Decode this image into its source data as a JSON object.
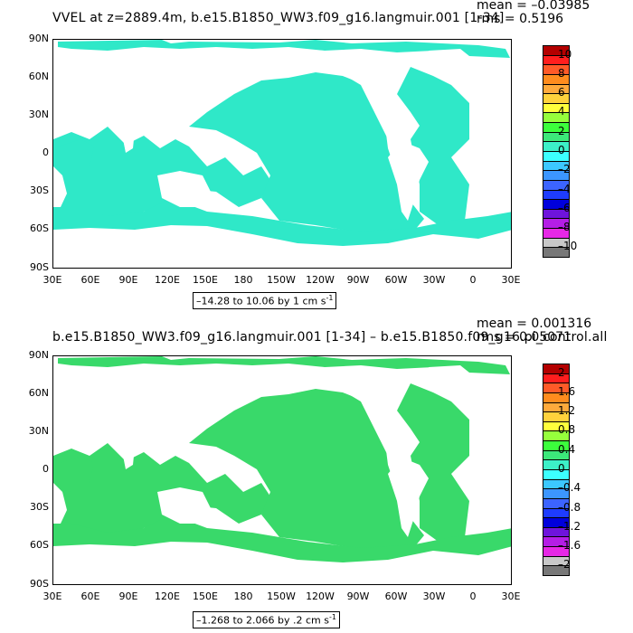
{
  "colors": {
    "land": "#ffffff",
    "ocean_main": "#2fe8c8",
    "ocean_alt": "#39d96a"
  },
  "y_ticks": [
    "90N",
    "60N",
    "30N",
    "0",
    "30S",
    "60S",
    "90S"
  ],
  "x_ticks": [
    "30E",
    "60E",
    "90E",
    "120E",
    "150E",
    "180",
    "150W",
    "120W",
    "90W",
    "60W",
    "30W",
    "0",
    "30E"
  ],
  "panels": [
    {
      "title": "VVEL at z=2889.4m, b.e15.B1850_WW3.f09_g16.langmuir.001 [1-34]",
      "mean": "mean = –0.03985",
      "rms": "rms = 0.5196",
      "range_text": "–14.28 to 10.06 by 1 cm s",
      "range_unit_exp": "-1",
      "colorbar_labels": [
        "10",
        "8",
        "6",
        "4",
        "2",
        "0",
        "–2",
        "–4",
        "–6",
        "–8",
        "–10"
      ],
      "colorbar_colors": [
        "#b40000",
        "#ff1e1e",
        "#ff5a28",
        "#ff8c1e",
        "#ffaa3c",
        "#ffd23c",
        "#ffff3c",
        "#96ff3c",
        "#3cff3c",
        "#3ce87a",
        "#3cf0c8",
        "#3cffff",
        "#3cc8ff",
        "#3c96ff",
        "#3c64ff",
        "#1e3cff",
        "#0000dc",
        "#6e14dc",
        "#b41ee6",
        "#e628e6",
        "#c8c8c8",
        "#787878"
      ]
    },
    {
      "title": "b.e15.B1850_WW3.f09_g16.langmuir.001 [1-34] – b.e15.B1850.f09_g16.pi_control.all",
      "mean": "mean = 0.001316",
      "rms": "rms = 0.05071",
      "range_text": "–1.268 to 2.066 by .2 cm s",
      "range_unit_exp": "-1",
      "colorbar_labels": [
        "2",
        "1.6",
        "1.2",
        "0.8",
        "0.4",
        "0",
        "–0.4",
        "–0.8",
        "–1.2",
        "–1.6",
        "–2"
      ],
      "colorbar_colors": [
        "#b40000",
        "#ff1e1e",
        "#ff5a28",
        "#ff8c1e",
        "#ffaa3c",
        "#ffd23c",
        "#ffff3c",
        "#96ff3c",
        "#3cff3c",
        "#3ce87a",
        "#3cf0c8",
        "#3cffff",
        "#3cc8ff",
        "#3c96ff",
        "#3c64ff",
        "#1e3cff",
        "#0000dc",
        "#6e14dc",
        "#b41ee6",
        "#e628e6",
        "#c8c8c8",
        "#787878"
      ]
    }
  ]
}
